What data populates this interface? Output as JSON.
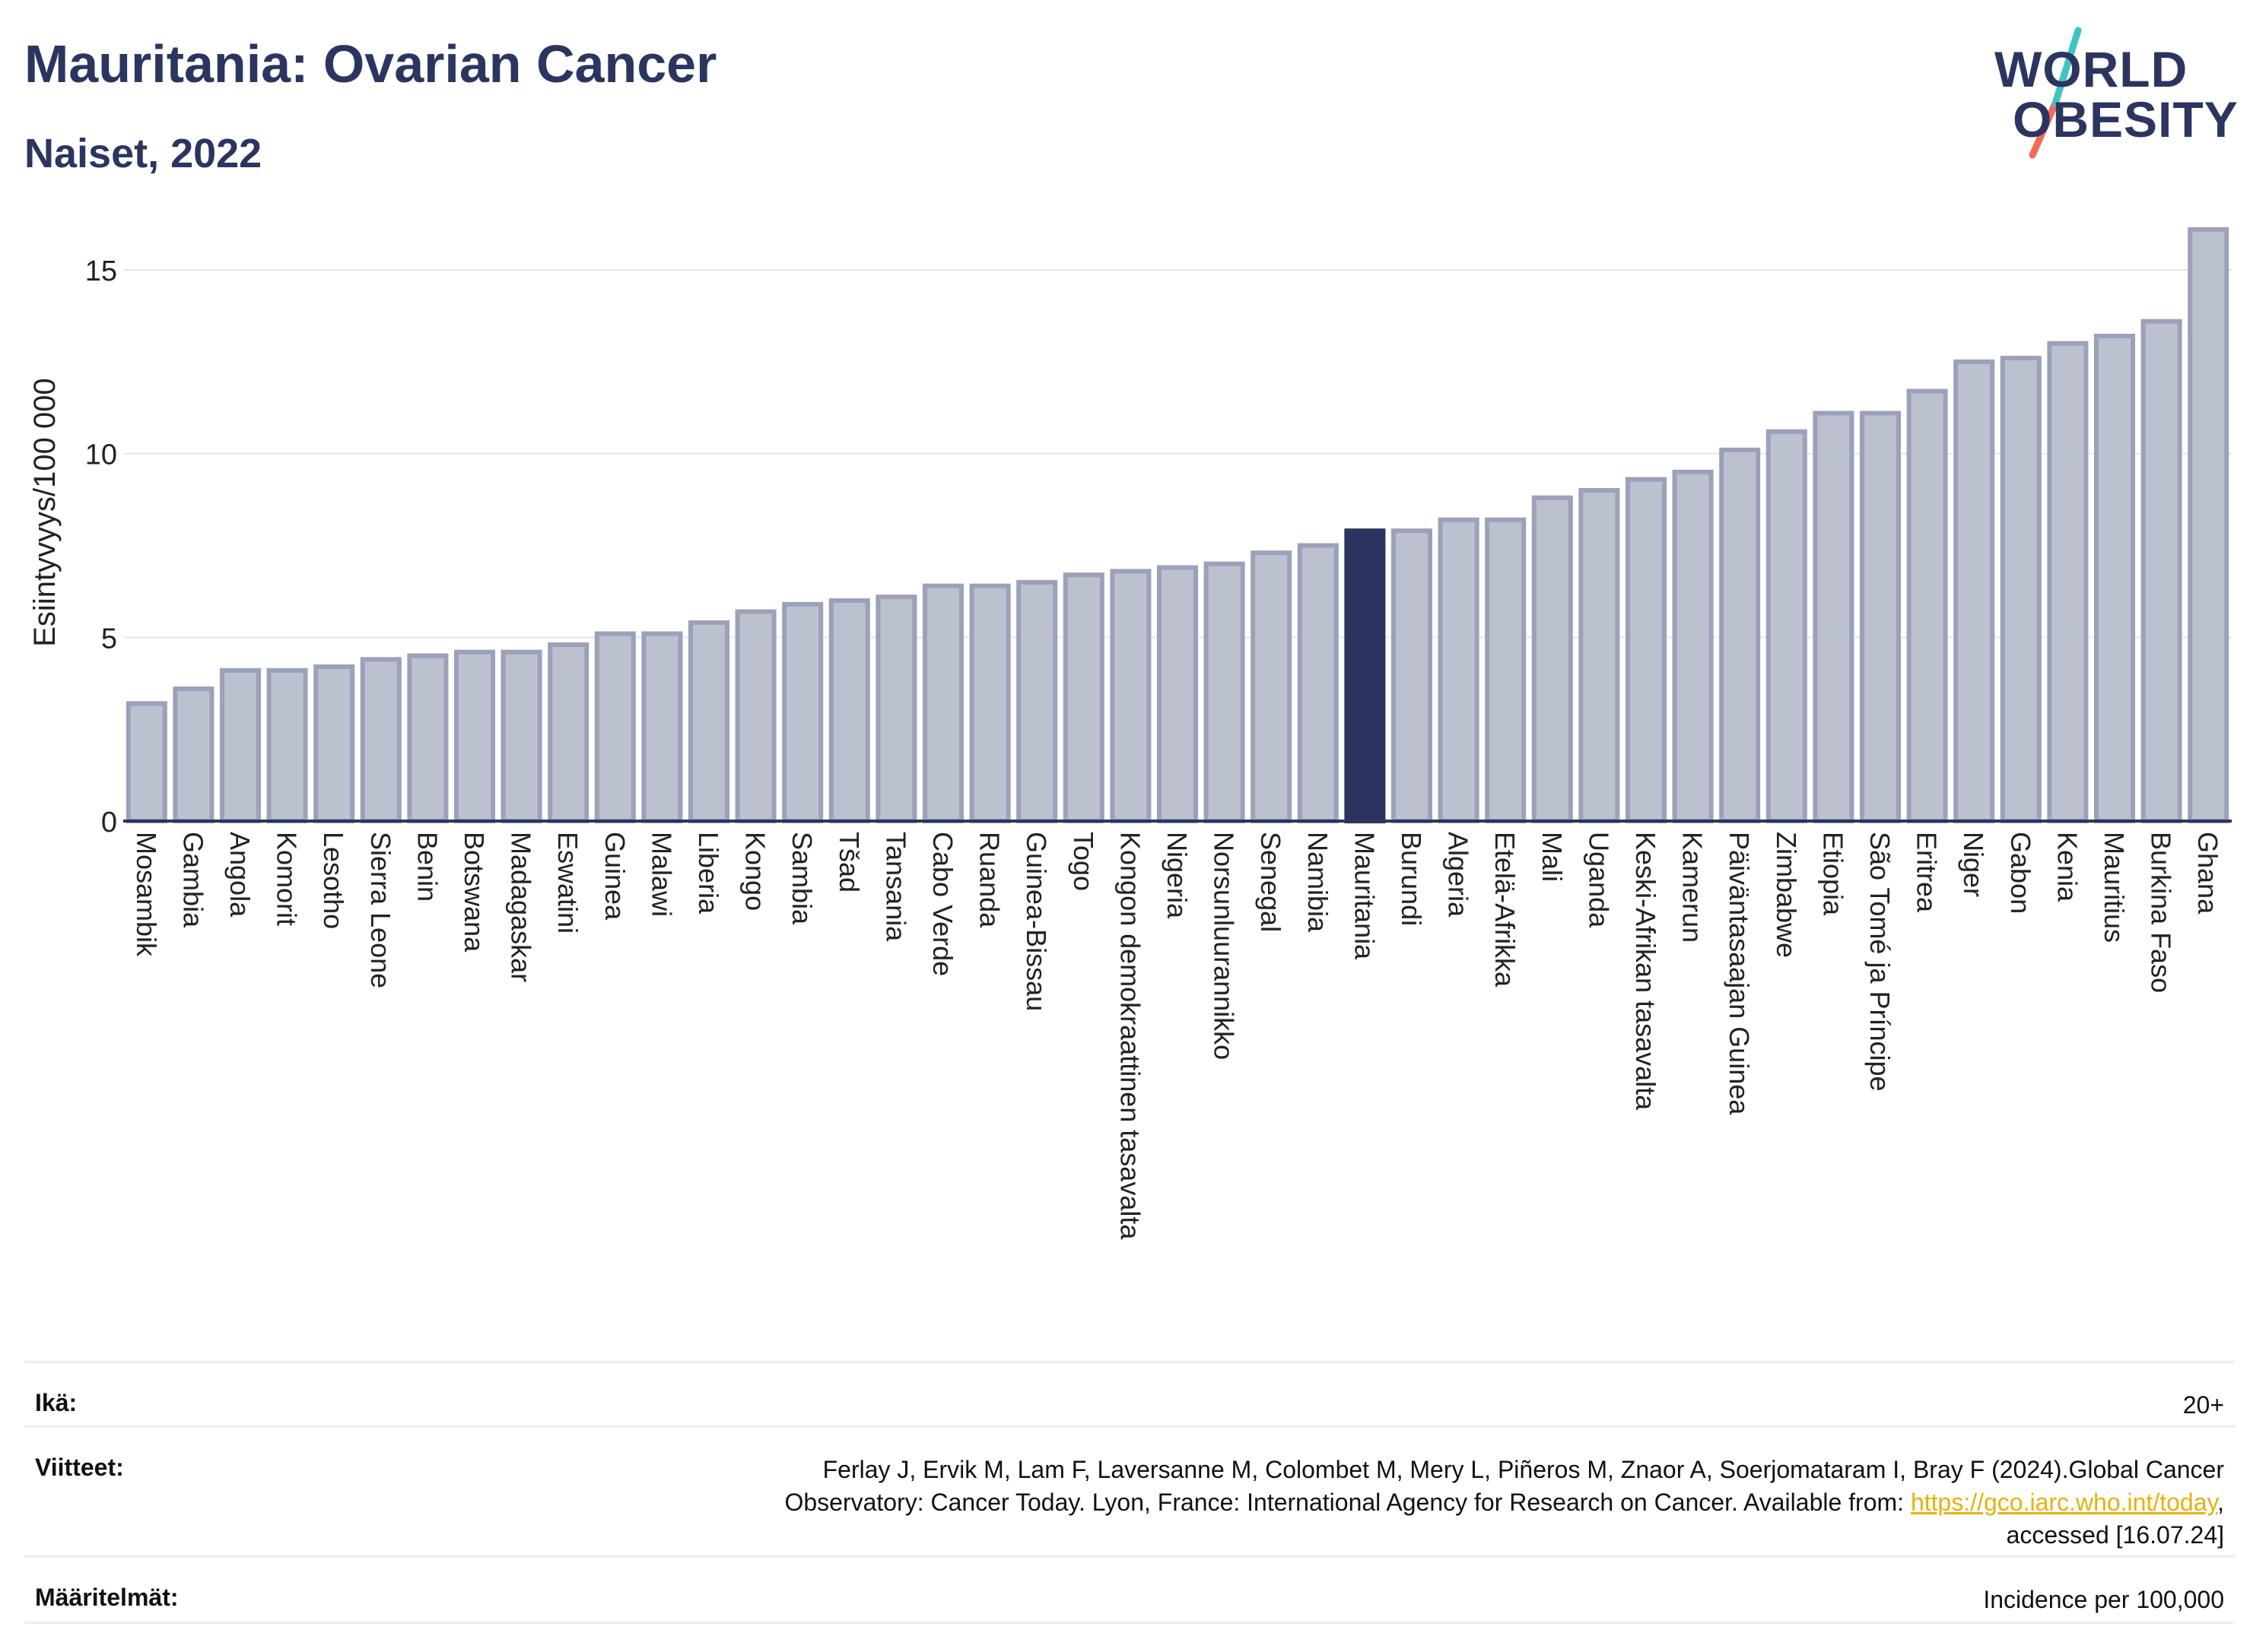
{
  "header": {
    "title": "Mauritania: Ovarian Cancer",
    "subtitle": "Naiset, 2022"
  },
  "logo": {
    "line1": "WORLD",
    "line2": "OBESITY",
    "slash_colors": [
      "#3ec4c4",
      "#ef6b5b"
    ]
  },
  "chart_data": {
    "type": "bar",
    "title": "Mauritania: Ovarian Cancer",
    "subtitle": "Naiset, 2022",
    "xlabel": "",
    "ylabel": "Esiintyvyys/100 000",
    "ylim": [
      0,
      16.8
    ],
    "yticks": [
      0,
      5,
      10,
      15
    ],
    "grid": true,
    "highlight": "Mauritania",
    "colors": {
      "bar": "#bcc1d0",
      "bar_edge": "#9aa1b9",
      "highlight": "#2b3560",
      "grid": "#e3e6ec",
      "axis": "#2b3560"
    },
    "categories": [
      "Mosambik",
      "Gambia",
      "Angola",
      "Komorit",
      "Lesotho",
      "Sierra Leone",
      "Benin",
      "Botswana",
      "Madagaskar",
      "Eswatini",
      "Guinea",
      "Malawi",
      "Liberia",
      "Kongo",
      "Sambia",
      "Tšad",
      "Tansania",
      "Cabo Verde",
      "Ruanda",
      "Guinea-Bissau",
      "Togo",
      "Kongon demokraattinen tasavalta",
      "Nigeria",
      "Norsunluurannikko",
      "Senegal",
      "Namibia",
      "Mauritania",
      "Burundi",
      "Algeria",
      "Etelä-Afrikka",
      "Mali",
      "Uganda",
      "Keski-Afrikan tasavalta",
      "Kamerun",
      "Päiväntasaajan Guinea",
      "Zimbabwe",
      "Etiopia",
      "São Tomé ja Príncipe",
      "Eritrea",
      "Niger",
      "Gabon",
      "Kenia",
      "Mauritius",
      "Burkina Faso",
      "Ghana"
    ],
    "values": [
      3.2,
      3.6,
      4.1,
      4.1,
      4.2,
      4.4,
      4.5,
      4.6,
      4.6,
      4.8,
      5.1,
      5.1,
      5.4,
      5.7,
      5.9,
      6.0,
      6.1,
      6.4,
      6.4,
      6.5,
      6.7,
      6.8,
      6.9,
      7.0,
      7.3,
      7.5,
      7.9,
      7.9,
      8.2,
      8.2,
      8.8,
      9.0,
      9.3,
      9.5,
      10.1,
      10.6,
      11.1,
      11.1,
      11.7,
      12.5,
      12.6,
      13.0,
      13.2,
      13.6,
      16.1
    ]
  },
  "info": {
    "age_label": "Ikä:",
    "age_value": "20+",
    "refs_label": "Viitteet:",
    "refs_text_1": "Ferlay J, Ervik M, Lam F, Laversanne M, Colombet M, Mery L, Piñeros M, Znaor A, Soerjomataram I, Bray F (2024).Global Cancer",
    "refs_text_2": "Observatory: Cancer Today. Lyon, France: International Agency for Research on Cancer. Available from: ",
    "refs_link": "https://gco.iarc.who.int/today",
    "refs_text_3": ",",
    "refs_text_4": "accessed [16.07.24]",
    "def_label": "Määritelmät:",
    "def_value": "Incidence per 100,000"
  }
}
